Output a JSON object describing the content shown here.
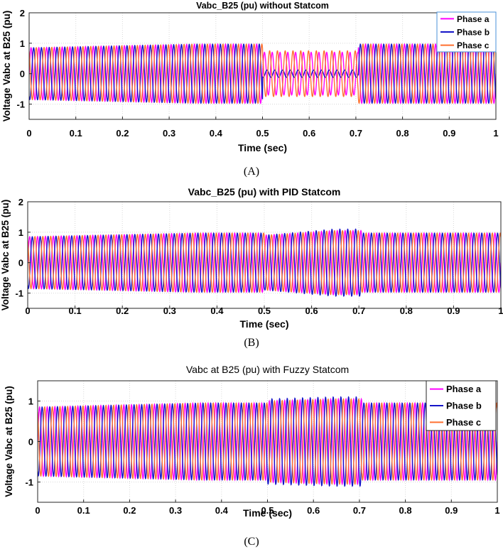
{
  "colors": {
    "phase_a": "#ff00ff",
    "phase_b": "#1414c8",
    "phase_c": "#ff7030"
  },
  "chart_data": [
    {
      "type": "line",
      "title": "Vabc_B25 (pu) without Statcom",
      "xlabel": "Time (sec)",
      "ylabel": "Voltage Vabc at B25 (pu)",
      "xlim": [
        0,
        1
      ],
      "ylim": [
        -1.5,
        2
      ],
      "xticks": [
        "0",
        "0.1",
        "0.2",
        "0.3",
        "0.4",
        "0.5",
        "0.6",
        "0.7",
        "0.8",
        "0.9",
        "1"
      ],
      "yticks": [
        "-1",
        "0",
        "1",
        "2"
      ],
      "frequency_hz": 60,
      "legend": [
        "Phase a",
        "Phase b",
        "Phase c"
      ],
      "legend_position": "top-right",
      "caption": "(A)",
      "series": [
        {
          "name": "Phase a",
          "segments": [
            {
              "t": [
                0,
                0.5
              ],
              "amp_start": 0.85,
              "amp_end": 0.97
            },
            {
              "t": [
                0.5,
                0.705
              ],
              "amp_start": 0.7,
              "amp_end": 0.7
            },
            {
              "t": [
                0.705,
                1
              ],
              "amp_start": 0.97,
              "amp_end": 0.97
            }
          ]
        },
        {
          "name": "Phase b",
          "segments": [
            {
              "t": [
                0,
                0.5
              ],
              "amp_start": 0.85,
              "amp_end": 0.97
            },
            {
              "t": [
                0.5,
                0.705
              ],
              "amp_start": 0.12,
              "amp_end": 0.12
            },
            {
              "t": [
                0.705,
                1
              ],
              "amp_start": 0.97,
              "amp_end": 0.97
            }
          ]
        },
        {
          "name": "Phase c",
          "segments": [
            {
              "t": [
                0,
                0.5
              ],
              "amp_start": 0.85,
              "amp_end": 0.97
            },
            {
              "t": [
                0.5,
                0.705
              ],
              "amp_start": 0.75,
              "amp_end": 0.75
            },
            {
              "t": [
                0.705,
                1
              ],
              "amp_start": 0.97,
              "amp_end": 0.97
            }
          ]
        }
      ]
    },
    {
      "type": "line",
      "title": "Vabc_B25 (pu) with PID Statcom",
      "xlabel": "Time (sec)",
      "ylabel": "Voltage Vabc at B25 (pu)",
      "xlim": [
        0,
        1
      ],
      "ylim": [
        -1.5,
        2
      ],
      "xticks": [
        "0",
        "0.1",
        "0.2",
        "0.3",
        "0.4",
        "0.5",
        "0.6",
        "0.7",
        "0.8",
        "0.9",
        "1"
      ],
      "yticks": [
        "-1",
        "0",
        "1",
        "2"
      ],
      "frequency_hz": 60,
      "legend": [],
      "caption": "(B)",
      "series": [
        {
          "name": "Phase a",
          "segments": [
            {
              "t": [
                0,
                0.5
              ],
              "amp_start": 0.85,
              "amp_end": 0.97
            },
            {
              "t": [
                0.5,
                0.705
              ],
              "amp_start": 0.9,
              "amp_end": 1.05
            },
            {
              "t": [
                0.705,
                1
              ],
              "amp_start": 0.97,
              "amp_end": 0.97
            }
          ]
        },
        {
          "name": "Phase b",
          "segments": [
            {
              "t": [
                0,
                0.5
              ],
              "amp_start": 0.85,
              "amp_end": 0.97
            },
            {
              "t": [
                0.5,
                0.705
              ],
              "amp_start": 0.9,
              "amp_end": 1.1
            },
            {
              "t": [
                0.705,
                1
              ],
              "amp_start": 0.97,
              "amp_end": 0.97
            }
          ]
        },
        {
          "name": "Phase c",
          "segments": [
            {
              "t": [
                0,
                0.5
              ],
              "amp_start": 0.85,
              "amp_end": 0.97
            },
            {
              "t": [
                0.5,
                0.705
              ],
              "amp_start": 0.9,
              "amp_end": 1.05
            },
            {
              "t": [
                0.705,
                1
              ],
              "amp_start": 0.97,
              "amp_end": 0.97
            }
          ]
        }
      ]
    },
    {
      "type": "line",
      "title": "Vabc at B25 (pu) with Fuzzy Statcom",
      "xlabel": "Time (sec)",
      "ylabel": "Voltage Vabc at B25 (pu)",
      "xlim": [
        0,
        1
      ],
      "ylim": [
        -1.5,
        1.5
      ],
      "xticks": [
        "0",
        "0.1",
        "0.2",
        "0.3",
        "0.4",
        "0.5",
        "0.6",
        "0.7",
        "0.8",
        "0.9",
        "1"
      ],
      "yticks": [
        "-1",
        "0",
        "1"
      ],
      "frequency_hz": 60,
      "legend": [
        "Phase a",
        "Phase b",
        "Phase c"
      ],
      "legend_position": "top-right",
      "caption": "(C)",
      "series": [
        {
          "name": "Phase a",
          "segments": [
            {
              "t": [
                0,
                0.5
              ],
              "amp_start": 0.85,
              "amp_end": 0.95
            },
            {
              "t": [
                0.5,
                0.705
              ],
              "amp_start": 1.0,
              "amp_end": 1.05
            },
            {
              "t": [
                0.705,
                1
              ],
              "amp_start": 0.95,
              "amp_end": 0.95
            }
          ]
        },
        {
          "name": "Phase b",
          "segments": [
            {
              "t": [
                0,
                0.5
              ],
              "amp_start": 0.85,
              "amp_end": 0.95
            },
            {
              "t": [
                0.5,
                0.705
              ],
              "amp_start": 1.05,
              "amp_end": 1.1
            },
            {
              "t": [
                0.705,
                1
              ],
              "amp_start": 0.95,
              "amp_end": 0.95
            }
          ]
        },
        {
          "name": "Phase c",
          "segments": [
            {
              "t": [
                0,
                0.5
              ],
              "amp_start": 0.85,
              "amp_end": 0.95
            },
            {
              "t": [
                0.5,
                0.705
              ],
              "amp_start": 1.0,
              "amp_end": 1.05
            },
            {
              "t": [
                0.705,
                1
              ],
              "amp_start": 0.95,
              "amp_end": 0.95
            }
          ]
        }
      ]
    }
  ]
}
